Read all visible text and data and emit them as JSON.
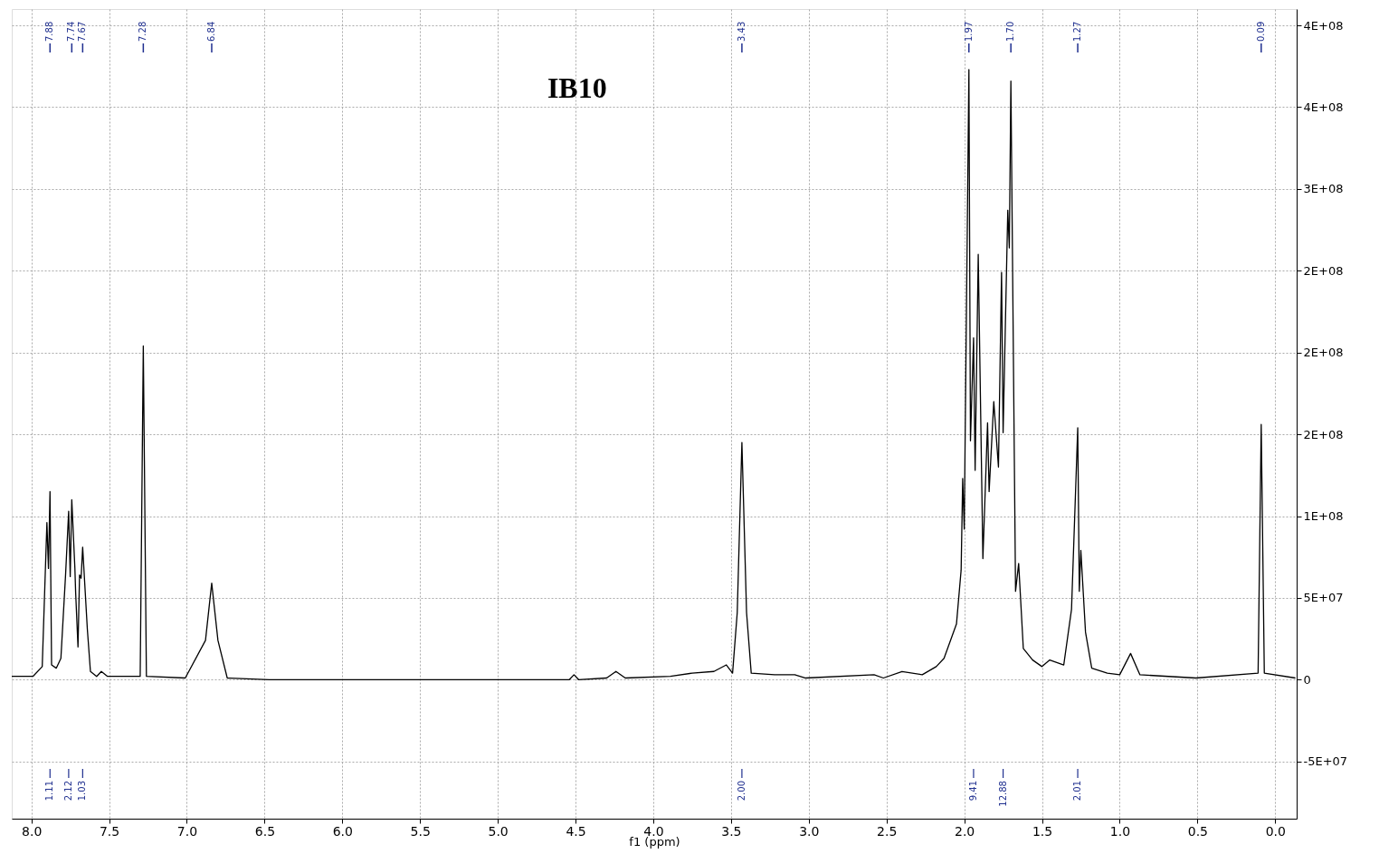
{
  "chart_data": {
    "type": "line",
    "title": "IB10",
    "xlabel": "f1 (ppm)",
    "x": [
      8.126,
      7.99,
      7.93,
      7.9,
      7.89,
      7.88,
      7.87,
      7.84,
      7.81,
      7.78,
      7.76,
      7.75,
      7.74,
      7.72,
      7.715,
      7.7,
      7.69,
      7.68,
      7.67,
      7.64,
      7.62,
      7.58,
      7.55,
      7.51,
      7.3,
      7.28,
      7.26,
      7.01,
      6.88,
      6.84,
      6.8,
      6.74,
      6.47,
      4.54,
      4.51,
      4.48,
      4.3,
      4.24,
      4.18,
      3.89,
      3.75,
      3.61,
      3.53,
      3.49,
      3.46,
      3.43,
      3.4,
      3.37,
      3.22,
      3.09,
      3.02,
      2.58,
      2.52,
      2.4,
      2.27,
      2.18,
      2.13,
      2.05,
      2.02,
      2.01,
      2.0,
      1.97,
      1.96,
      1.94,
      1.93,
      1.91,
      1.88,
      1.85,
      1.84,
      1.81,
      1.78,
      1.76,
      1.75,
      1.72,
      1.71,
      1.7,
      1.67,
      1.65,
      1.62,
      1.56,
      1.5,
      1.45,
      1.36,
      1.31,
      1.27,
      1.26,
      1.25,
      1.22,
      1.18,
      1.08,
      1.0,
      0.93,
      0.87,
      0.51,
      0.11,
      0.09,
      0.07,
      -0.13
    ],
    "series": [
      {
        "color": "#000000",
        "values": [
          2000000.0,
          2000000.0,
          8000000.0,
          96000000.0,
          68000000.0,
          115000000.0,
          9000000.0,
          7000000.0,
          13000000.0,
          64000000.0,
          103000000.0,
          63000000.0,
          110000000.0,
          68000000.0,
          53000000.0,
          20000000.0,
          64000000.0,
          62000000.0,
          81000000.0,
          31000000.0,
          5000000.0,
          2000000.0,
          5000000.0,
          2000000.0,
          2000000.0,
          204000000.0,
          2000000.0,
          1000000.0,
          24000000.0,
          59000000.0,
          24000000.0,
          1000000.0,
          0,
          0,
          3000000.0,
          0,
          1000000.0,
          5000000.0,
          1000000.0,
          2000000.0,
          4000000.0,
          5000000.0,
          9000000.0,
          4000000.0,
          41000000.0,
          145000000.0,
          41000000.0,
          4000000.0,
          3000000.0,
          3000000.0,
          1000000.0,
          3000000.0,
          1000000.0,
          5000000.0,
          3000000.0,
          8000000.0,
          13000000.0,
          34000000.0,
          67000000.0,
          123000000.0,
          92000000.0,
          373000000.0,
          146000000.0,
          209000000.0,
          128000000.0,
          260000000.0,
          74000000.0,
          157000000.0,
          115000000.0,
          170000000.0,
          130000000.0,
          249000000.0,
          151000000.0,
          287000000.0,
          264000000.0,
          366000000.0,
          54000000.0,
          71000000.0,
          19000000.0,
          12000000.0,
          8000000.0,
          12000000.0,
          9000000.0,
          43000000.0,
          154000000.0,
          54000000.0,
          79000000.0,
          29000000.0,
          7000000.0,
          4000000.0,
          3000000.0,
          16000000.0,
          3000000.0,
          1000000.0,
          4000000.0,
          156000000.0,
          4000000.0,
          1000000.0
        ]
      }
    ],
    "xlim": [
      8.126,
      -0.138
    ],
    "xticks": [
      {
        "value": 8,
        "label": "8.0"
      },
      7.5,
      {
        "value": 7,
        "label": "7.0"
      },
      6.5,
      {
        "value": 6,
        "label": "6.0"
      },
      5.5,
      {
        "value": 5,
        "label": "5.0"
      },
      4.5,
      {
        "value": 4,
        "label": "4.0"
      },
      3.5,
      {
        "value": 3,
        "label": "3.0"
      },
      2.5,
      {
        "value": 2,
        "label": "2.0"
      },
      1.5,
      {
        "value": 1,
        "label": "1.0"
      },
      0.5,
      {
        "value": 0,
        "label": "0.0"
      }
    ],
    "ylim": [
      -85000000.0,
      410000000.0
    ],
    "yticks": [
      {
        "value": 400000000.0,
        "label": "4E+08"
      },
      {
        "value": 350000000.0,
        "label": "4E+08"
      },
      {
        "value": 300000000.0,
        "label": "3E+08"
      },
      {
        "value": 250000000.0,
        "label": "2E+08"
      },
      {
        "value": 200000000.0,
        "label": "2E+08"
      },
      {
        "value": 150000000.0,
        "label": "2E+08"
      },
      {
        "value": 100000000.0,
        "label": "1E+08"
      },
      {
        "value": 50000000.0,
        "label": "5E+07"
      },
      0,
      {
        "value": -50000000.0,
        "label": "-5E+07"
      }
    ],
    "grid": true,
    "marker": "none",
    "line_style": "solid",
    "annotations": [
      {
        "text": "7.88",
        "x": 7.88
      },
      {
        "text": "7.74",
        "x": 7.74
      },
      {
        "text": "7.67",
        "x": 7.67
      },
      {
        "text": "7.28",
        "x": 7.28
      },
      {
        "text": "6.84",
        "x": 6.84
      },
      {
        "text": "3.43",
        "x": 3.43
      },
      {
        "text": "1.97",
        "x": 1.97
      },
      {
        "text": "1.70",
        "x": 1.7
      },
      {
        "text": "1.27",
        "x": 1.27
      },
      {
        "text": "0.09",
        "x": 0.09
      },
      {
        "text": "1.11",
        "x": 7.88
      },
      {
        "text": "2.12",
        "x": 7.76
      },
      {
        "text": "1.03",
        "x": 7.67
      },
      {
        "text": "2.00",
        "x": 3.43
      },
      {
        "text": "9.41",
        "x": 1.94
      },
      {
        "text": "12.88",
        "x": 1.75
      },
      {
        "text": "2.01",
        "x": 1.27
      }
    ]
  }
}
